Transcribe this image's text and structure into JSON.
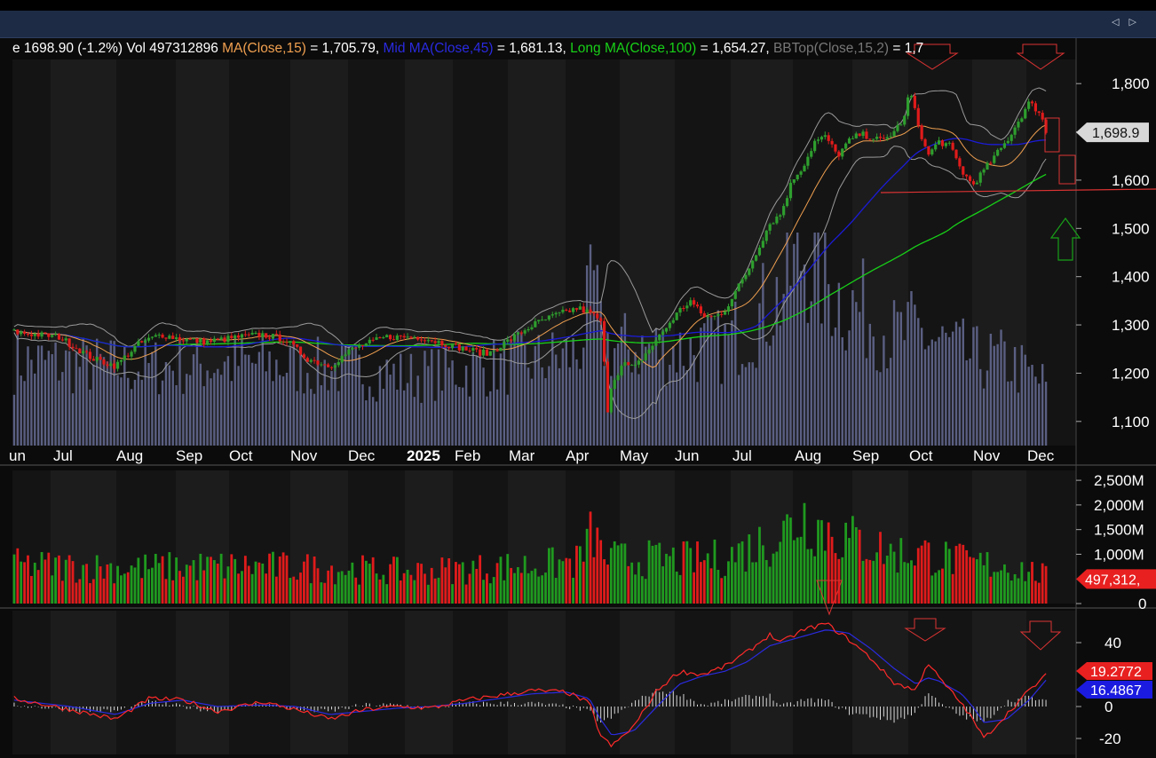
{
  "window": {
    "nav_arrows": "◁ ▷"
  },
  "legend": {
    "price": "e 1698.90 (-1.2%) Vol 497312896 ",
    "ma_short": "MA(Close,15)",
    "ma_short_val": " = 1,705.79, ",
    "ma_mid": "Mid MA(Close,45)",
    "ma_mid_val": " = 1,681.13, ",
    "ma_long": "Long MA(Close,100)",
    "ma_long_val": " = 1,654.27, ",
    "bb": "BBTop(Close,15,2)",
    "bb_val": " = 1,7"
  },
  "colors": {
    "up": "#2e9e2e",
    "down": "#e01b1b",
    "ma_short": "#f0a050",
    "ma_mid": "#1b1bd6",
    "ma_long": "#18d018",
    "bands": "#9a9a9a",
    "volume_bars": "#5a5f82",
    "axis_text": "#ffffff",
    "current_price_tag": "#d8d8d8",
    "annotation": "#d33"
  },
  "chart_data": [
    {
      "type": "candlestick",
      "title": "",
      "x_labels": [
        "un",
        "Jul",
        "Aug",
        "Sep",
        "Oct",
        "Nov",
        "Dec",
        "2025",
        "Feb",
        "Mar",
        "Apr",
        "May",
        "Jun",
        "Jul",
        "Aug",
        "Sep",
        "Oct",
        "Nov",
        "Dec"
      ],
      "y_ticks": [
        "1,800",
        "1,700",
        "1,600",
        "1,500",
        "1,400",
        "1,300",
        "1,200",
        "1,100"
      ],
      "ylim": [
        1050,
        1850
      ],
      "close_path": [
        [
          0,
          1285
        ],
        [
          4,
          1275
        ],
        [
          7,
          1230
        ],
        [
          9,
          1215
        ],
        [
          11,
          1260
        ],
        [
          13,
          1280
        ],
        [
          15,
          1270
        ],
        [
          17,
          1265
        ],
        [
          20,
          1275
        ],
        [
          22,
          1280
        ],
        [
          24,
          1270
        ],
        [
          26,
          1230
        ],
        [
          28,
          1215
        ],
        [
          30,
          1250
        ],
        [
          33,
          1275
        ],
        [
          36,
          1275
        ],
        [
          40,
          1250
        ],
        [
          42,
          1240
        ],
        [
          44,
          1270
        ],
        [
          46,
          1300
        ],
        [
          48,
          1320
        ],
        [
          50,
          1335
        ],
        [
          51,
          1325
        ],
        [
          52,
          1310
        ],
        [
          52.3,
          1230
        ],
        [
          52.6,
          1120
        ],
        [
          53,
          1180
        ],
        [
          54,
          1220
        ],
        [
          55,
          1210
        ],
        [
          56,
          1240
        ],
        [
          57,
          1270
        ],
        [
          58,
          1300
        ],
        [
          59,
          1330
        ],
        [
          60,
          1350
        ],
        [
          61,
          1320
        ],
        [
          62,
          1315
        ],
        [
          63,
          1330
        ],
        [
          64,
          1370
        ],
        [
          65,
          1410
        ],
        [
          66,
          1460
        ],
        [
          67,
          1510
        ],
        [
          68,
          1530
        ],
        [
          69,
          1600
        ],
        [
          70,
          1630
        ],
        [
          71,
          1680
        ],
        [
          72,
          1690
        ],
        [
          73,
          1650
        ],
        [
          74,
          1680
        ],
        [
          75,
          1695
        ],
        [
          76,
          1690
        ],
        [
          77,
          1680
        ],
        [
          78,
          1700
        ],
        [
          79,
          1730
        ],
        [
          79.4,
          1790
        ],
        [
          80,
          1730
        ],
        [
          81,
          1650
        ],
        [
          82,
          1680
        ],
        [
          83,
          1670
        ],
        [
          84,
          1620
        ],
        [
          85,
          1590
        ],
        [
          86,
          1620
        ],
        [
          87,
          1650
        ],
        [
          88,
          1680
        ],
        [
          89,
          1720
        ],
        [
          90,
          1760
        ],
        [
          91,
          1740
        ],
        [
          91.5,
          1698.9
        ]
      ],
      "current_price": "1,698.9",
      "moving_averages": [
        {
          "name": "MA(Close,15)",
          "last": 1705.79
        },
        {
          "name": "Mid MA(Close,45)",
          "last": 1681.13
        },
        {
          "name": "Long MA(Close,100)",
          "last": 1654.27
        }
      ]
    },
    {
      "type": "bar",
      "title": "",
      "y_ticks": [
        "2,500M",
        "2,000M",
        "1,500M",
        "1,000M",
        "0"
      ],
      "ylim": [
        0,
        2700
      ],
      "unit": "M",
      "last_value_tag": "497,312,",
      "volume_profile": [
        [
          0,
          780
        ],
        [
          10,
          720
        ],
        [
          20,
          760
        ],
        [
          30,
          700
        ],
        [
          35,
          640
        ],
        [
          40,
          700
        ],
        [
          45,
          760
        ],
        [
          48,
          800
        ],
        [
          50,
          850
        ],
        [
          51.5,
          1500
        ],
        [
          52,
          1000
        ],
        [
          53,
          900
        ],
        [
          55,
          900
        ],
        [
          60,
          880
        ],
        [
          63,
          920
        ],
        [
          65,
          1100
        ],
        [
          68,
          1400
        ],
        [
          70,
          1800
        ],
        [
          72,
          1500
        ],
        [
          74,
          1300
        ],
        [
          76,
          1200
        ],
        [
          78,
          1000
        ],
        [
          80,
          1050
        ],
        [
          82,
          950
        ],
        [
          85,
          800
        ],
        [
          88,
          780
        ],
        [
          91.5,
          560
        ]
      ]
    },
    {
      "type": "line",
      "title": "",
      "y_ticks": [
        "40",
        "0",
        "-20"
      ],
      "ylim": [
        -30,
        60
      ],
      "series": [
        {
          "name": "",
          "last": "19.2772"
        },
        {
          "name": "",
          "last": "16.4867"
        }
      ],
      "macd_path": [
        [
          0,
          5
        ],
        [
          5,
          -2
        ],
        [
          9,
          -8
        ],
        [
          12,
          5
        ],
        [
          15,
          4
        ],
        [
          18,
          -3
        ],
        [
          22,
          3
        ],
        [
          25,
          -2
        ],
        [
          28,
          -8
        ],
        [
          31,
          -2
        ],
        [
          34,
          0
        ],
        [
          37,
          -1
        ],
        [
          40,
          4
        ],
        [
          43,
          7
        ],
        [
          46,
          10
        ],
        [
          49,
          9
        ],
        [
          51,
          2
        ],
        [
          52,
          -18
        ],
        [
          53,
          -25
        ],
        [
          55,
          -12
        ],
        [
          57,
          10
        ],
        [
          59,
          22
        ],
        [
          61,
          20
        ],
        [
          63,
          25
        ],
        [
          65,
          34
        ],
        [
          67,
          45
        ],
        [
          68,
          40
        ],
        [
          70,
          48
        ],
        [
          72,
          52
        ],
        [
          74,
          42
        ],
        [
          76,
          30
        ],
        [
          78,
          15
        ],
        [
          80,
          10
        ],
        [
          81,
          28
        ],
        [
          82,
          18
        ],
        [
          84,
          2
        ],
        [
          85,
          -8
        ],
        [
          86,
          -20
        ],
        [
          88,
          -5
        ],
        [
          90,
          10
        ],
        [
          91.5,
          19.28
        ]
      ],
      "signal_path": [
        [
          0,
          4
        ],
        [
          5,
          0
        ],
        [
          9,
          -5
        ],
        [
          12,
          2
        ],
        [
          15,
          4
        ],
        [
          18,
          0
        ],
        [
          22,
          1
        ],
        [
          25,
          0
        ],
        [
          28,
          -5
        ],
        [
          31,
          -3
        ],
        [
          34,
          -1
        ],
        [
          37,
          0
        ],
        [
          40,
          2
        ],
        [
          43,
          5
        ],
        [
          46,
          8
        ],
        [
          49,
          9
        ],
        [
          51,
          5
        ],
        [
          52,
          -8
        ],
        [
          53,
          -18
        ],
        [
          55,
          -15
        ],
        [
          57,
          0
        ],
        [
          59,
          14
        ],
        [
          61,
          19
        ],
        [
          63,
          22
        ],
        [
          65,
          28
        ],
        [
          67,
          38
        ],
        [
          68,
          40
        ],
        [
          70,
          44
        ],
        [
          72,
          48
        ],
        [
          74,
          46
        ],
        [
          76,
          36
        ],
        [
          78,
          24
        ],
        [
          80,
          14
        ],
        [
          81,
          18
        ],
        [
          82,
          16
        ],
        [
          84,
          8
        ],
        [
          85,
          0
        ],
        [
          86,
          -10
        ],
        [
          88,
          -8
        ],
        [
          90,
          4
        ],
        [
          91.5,
          16.49
        ]
      ]
    }
  ]
}
